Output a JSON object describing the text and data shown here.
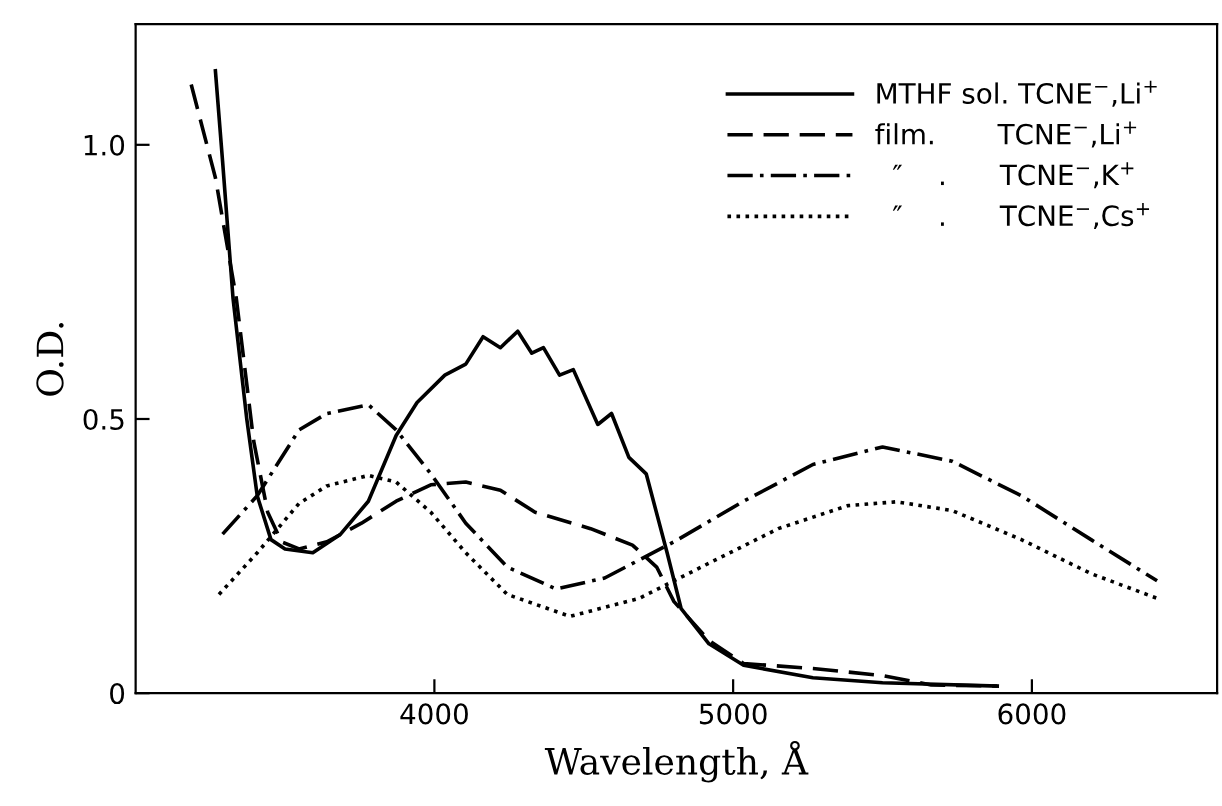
{
  "chart_data": {
    "type": "line",
    "xlabel": "Wavelength, Å",
    "ylabel": "O.D.",
    "xlim": [
      3000,
      6620
    ],
    "ylim": [
      0,
      1.22
    ],
    "xticks": [
      4000,
      5000,
      6000
    ],
    "yticks": [
      {
        "value": 0,
        "label": "0"
      },
      {
        "value": 0.5,
        "label": "0.5"
      },
      {
        "value": 1.0,
        "label": "1.0"
      }
    ],
    "grid": false,
    "legend": "top right",
    "marker": "none",
    "series": [
      {
        "name": "MTHF sol. TCNE$^{−}$,Li$^{+}$",
        "color": "#000000",
        "line_style": "solid",
        "x": [
          3267,
          3291,
          3326,
          3372,
          3407,
          3453,
          3500,
          3593,
          3686,
          3779,
          3872,
          3942,
          4035,
          4105,
          4163,
          4221,
          4279,
          4326,
          4365,
          4419,
          4465,
          4547,
          4593,
          4651,
          4709,
          4779,
          4826,
          4919,
          5035,
          5267,
          5500,
          5884
        ],
        "values": [
          1.135,
          0.97,
          0.72,
          0.5,
          0.36,
          0.28,
          0.263,
          0.256,
          0.29,
          0.35,
          0.47,
          0.53,
          0.58,
          0.6,
          0.65,
          0.63,
          0.66,
          0.62,
          0.63,
          0.58,
          0.59,
          0.49,
          0.51,
          0.43,
          0.4,
          0.256,
          0.154,
          0.09,
          0.051,
          0.028,
          0.019,
          0.013
        ]
      },
      {
        "name": "film.       TCNE$^{−}$,Li$^{+}$",
        "color": "#000000",
        "line_style": "dashed",
        "x": [
          3186,
          3267,
          3337,
          3395,
          3442,
          3488,
          3547,
          3640,
          3756,
          3872,
          3988,
          4105,
          4221,
          4337,
          4523,
          4663,
          4744,
          4802,
          4919,
          5035,
          5267,
          5500,
          5663,
          5884
        ],
        "values": [
          1.11,
          0.94,
          0.72,
          0.46,
          0.33,
          0.276,
          0.263,
          0.276,
          0.31,
          0.35,
          0.38,
          0.385,
          0.37,
          0.33,
          0.3,
          0.27,
          0.23,
          0.167,
          0.096,
          0.054,
          0.045,
          0.032,
          0.015,
          0.013
        ]
      },
      {
        "name": "  ″    .      TCNE$^{−}$,K$^{+}$",
        "color": "#000000",
        "line_style": "dashdot",
        "x": [
          3291,
          3407,
          3547,
          3640,
          3779,
          3872,
          3988,
          4105,
          4244,
          4407,
          4570,
          4802,
          5035,
          5267,
          5500,
          5733,
          5965,
          6198,
          6419
        ],
        "values": [
          0.29,
          0.36,
          0.48,
          0.51,
          0.526,
          0.48,
          0.4,
          0.31,
          0.23,
          0.19,
          0.21,
          0.276,
          0.35,
          0.417,
          0.449,
          0.423,
          0.36,
          0.28,
          0.205
        ]
      },
      {
        "name": "  ″    .      TCNE$^{−}$,Cs$^{+}$",
        "color": "#000000",
        "line_style": "dotted",
        "x": [
          3279,
          3407,
          3547,
          3640,
          3779,
          3872,
          3988,
          4105,
          4244,
          4454,
          4686,
          4919,
          5151,
          5384,
          5547,
          5733,
          5965,
          6198,
          6419
        ],
        "values": [
          0.18,
          0.256,
          0.346,
          0.378,
          0.397,
          0.385,
          0.33,
          0.256,
          0.18,
          0.14,
          0.173,
          0.237,
          0.3,
          0.342,
          0.349,
          0.333,
          0.28,
          0.218,
          0.173
        ]
      }
    ]
  }
}
